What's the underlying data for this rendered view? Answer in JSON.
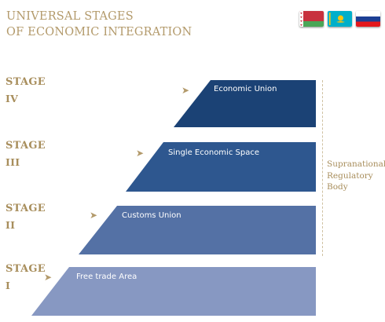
{
  "title": {
    "line1": "UNIVERSAL STAGES",
    "line2": "OF ECONOMIC INTEGRATION"
  },
  "flags": [
    {
      "name": "belarus-flag-icon"
    },
    {
      "name": "kazakhstan-flag-icon"
    },
    {
      "name": "russia-flag-icon"
    }
  ],
  "stages": [
    {
      "word": "STAGE",
      "numeral": "IV",
      "label": "Economic Union",
      "color": "#1b4275"
    },
    {
      "word": "STAGE",
      "numeral": "III",
      "label": "Single Economic Space",
      "color": "#2e578f"
    },
    {
      "word": "STAGE",
      "numeral": "II",
      "label": "Customs Union",
      "color": "#5471a5"
    },
    {
      "word": "STAGE",
      "numeral": "I",
      "label": "Free trade Area",
      "color": "#8798c2"
    }
  ],
  "arrow_glyph": "➤",
  "supranational": {
    "line1": "Supranational",
    "line2": "Regulatory",
    "line3": "Body"
  },
  "colors": {
    "gold": "#b39a6b"
  }
}
